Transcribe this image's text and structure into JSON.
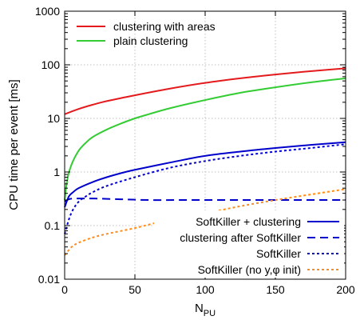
{
  "chart_data": {
    "type": "line",
    "xlabel": "N",
    "xlabel_sub": "PU",
    "ylabel": "CPU time per event [ms]",
    "xlim": [
      0,
      200
    ],
    "ylim": [
      0.01,
      1000
    ],
    "yscale": "log",
    "grid": true,
    "xticks": [
      0,
      50,
      100,
      150,
      200
    ],
    "xtick_labels": [
      "0",
      "50",
      "100",
      "150",
      "200"
    ],
    "yticks": [
      0.01,
      0.1,
      1,
      10,
      100,
      1000
    ],
    "ytick_labels": [
      "0.01",
      "0.1",
      "1",
      "10",
      "100",
      "1000"
    ],
    "legends": [
      {
        "placement": "top-left",
        "entries": [
          {
            "label": "clustering with areas",
            "series": 0
          },
          {
            "label": "plain clustering",
            "series": 1
          }
        ]
      },
      {
        "placement": "bottom-right",
        "entries": [
          {
            "label": "SoftKiller + clustering",
            "series": 2
          },
          {
            "label": "clustering after SoftKiller",
            "series": 3
          },
          {
            "label": "SoftKiller",
            "series": 4
          },
          {
            "label": "SoftKiller (no y,φ init)",
            "series": 5
          }
        ]
      }
    ],
    "series": [
      {
        "name": "clustering with areas",
        "color": "#e41a1c",
        "dash": "solid",
        "x": [
          0,
          10,
          20,
          30,
          50,
          75,
          100,
          125,
          150,
          175,
          200
        ],
        "y": [
          12,
          15,
          18,
          21,
          27,
          36,
          46,
          56,
          66,
          76,
          86
        ]
      },
      {
        "name": "plain clustering",
        "color": "#33cc33",
        "dash": "solid",
        "x": [
          0,
          2,
          5,
          10,
          15,
          20,
          30,
          40,
          50,
          60,
          75,
          100,
          125,
          150,
          175,
          200
        ],
        "y": [
          0.3,
          0.75,
          1.4,
          2.5,
          3.5,
          4.5,
          6.2,
          8.0,
          10,
          12,
          15.5,
          22,
          30,
          38,
          47,
          56
        ]
      },
      {
        "name": "SoftKiller + clustering",
        "color": "#0000cc",
        "dash": "solid",
        "x": [
          0,
          3,
          6,
          10,
          20,
          30,
          40,
          50,
          75,
          100,
          125,
          150,
          175,
          200
        ],
        "y": [
          0.22,
          0.35,
          0.42,
          0.5,
          0.65,
          0.8,
          0.95,
          1.1,
          1.5,
          2.0,
          2.4,
          2.8,
          3.2,
          3.6
        ]
      },
      {
        "name": "clustering after SoftKiller",
        "color": "#0000cc",
        "dash": "dashed",
        "x": [
          0,
          3,
          6,
          10,
          20,
          40,
          60,
          80,
          100,
          120,
          150,
          175,
          200
        ],
        "y": [
          0.28,
          0.31,
          0.32,
          0.32,
          0.32,
          0.31,
          0.3,
          0.3,
          0.3,
          0.3,
          0.3,
          0.3,
          0.3
        ]
      },
      {
        "name": "SoftKiller",
        "color": "#0000cc",
        "dash": "dotted",
        "x": [
          0,
          3,
          6,
          10,
          15,
          20,
          30,
          50,
          75,
          100,
          125,
          150,
          175,
          200
        ],
        "y": [
          0.07,
          0.13,
          0.2,
          0.28,
          0.35,
          0.42,
          0.55,
          0.8,
          1.2,
          1.6,
          2.0,
          2.4,
          2.8,
          3.3
        ]
      },
      {
        "name": "SoftKiller (no y,φ init)",
        "color": "#ff8c1a",
        "dash": "dotted",
        "x": [
          0,
          5,
          10,
          20,
          30,
          50,
          75,
          100,
          125,
          150,
          175,
          200
        ],
        "y": [
          0.028,
          0.04,
          0.048,
          0.06,
          0.07,
          0.09,
          0.13,
          0.17,
          0.23,
          0.3,
          0.38,
          0.48
        ]
      }
    ]
  }
}
